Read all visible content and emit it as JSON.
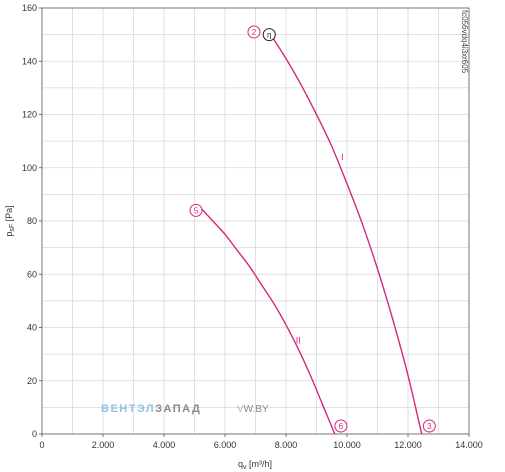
{
  "chart_data": {
    "type": "line",
    "title": "",
    "xlabel": "q",
    "xlabel_sub": "v",
    "xlabel_unit": " [m³/h]",
    "ylabel": "p",
    "ylabel_sub": "sF",
    "ylabel_unit": " [Pa]",
    "xlim": [
      0,
      14000
    ],
    "ylim": [
      0,
      160
    ],
    "x_ticks": [
      0,
      2000,
      4000,
      6000,
      8000,
      10000,
      12000,
      14000
    ],
    "x_tick_labels": [
      "0",
      "2.000",
      "4.000",
      "6.000",
      "8.000",
      "10.000",
      "12.000",
      "14.000"
    ],
    "y_ticks": [
      0,
      20,
      40,
      60,
      80,
      100,
      120,
      140,
      160
    ],
    "y_tick_labels": [
      "0",
      "20",
      "40",
      "60",
      "80",
      "100",
      "120",
      "140",
      "160"
    ],
    "x_grid_step": 1000,
    "y_grid_step": 10,
    "grid": true,
    "series": [
      {
        "name": "I",
        "x": [
          7500,
          8000,
          8500,
          9000,
          9500,
          10000,
          10500,
          11000,
          11500,
          12000,
          12450
        ],
        "y": [
          150,
          141,
          131,
          120,
          108,
          94,
          79,
          62,
          43,
          22,
          0
        ]
      },
      {
        "name": "II",
        "x": [
          5200,
          5600,
          6000,
          6400,
          6800,
          7200,
          7600,
          8000,
          8400,
          8800,
          9200,
          9600
        ],
        "y": [
          85,
          80,
          75,
          69,
          63,
          56,
          49,
          41,
          32,
          22,
          11,
          0
        ]
      }
    ],
    "curve_labels": [
      {
        "text": "I",
        "x": 9850,
        "y": 103
      },
      {
        "text": "II",
        "x": 8400,
        "y": 34
      }
    ],
    "point_markers": [
      {
        "text": "2",
        "x": 6950,
        "y": 151
      },
      {
        "text": "5",
        "x": 5050,
        "y": 84
      },
      {
        "text": "6",
        "x": 9800,
        "y": 3
      },
      {
        "text": "3",
        "x": 12700,
        "y": 3
      }
    ],
    "eta_marker": {
      "text": "η",
      "x": 7450,
      "y": 150
    },
    "side_code": "fc056vdq4i3xr605",
    "watermark": {
      "part1": "ВЕНТЭЛ",
      "part2": "ЗАПАД",
      "part3": "V",
      "part4": "W.BY"
    },
    "colors": {
      "curve": "#d6267f",
      "grid": "#d9d9d9",
      "axis": "#555555"
    }
  }
}
